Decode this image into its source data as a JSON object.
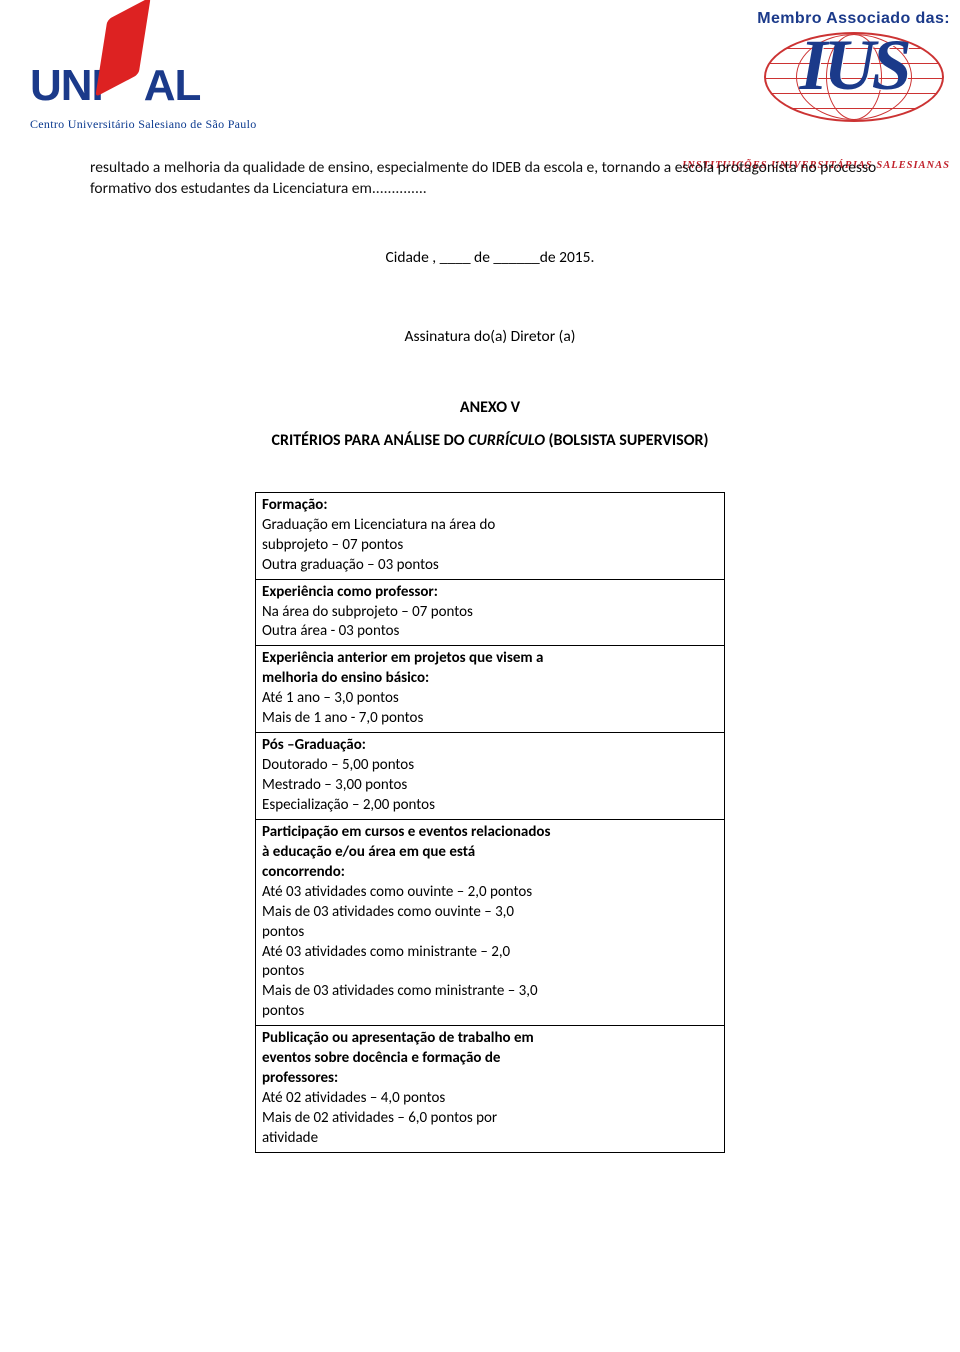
{
  "header": {
    "logo_left": {
      "uni": "UNI",
      "sal": "AL",
      "sub": "Centro Universitário Salesiano de São Paulo"
    },
    "logo_right": {
      "membro": "Membro Associado das:",
      "ius": "IUS",
      "sub": "INSTITUIÇÕES UNIVERSITÁRIAS SALESIANAS"
    }
  },
  "body": {
    "paragraph": "resultado a melhoria da qualidade de ensino, especialmente do IDEB da escola e, tornando a escola protagonista no processo formativo dos estudantes da Licenciatura em..............",
    "cidade_line": "Cidade , ____ de ______de 2015.",
    "assinatura": "Assinatura do(a) Diretor (a)",
    "anexo": "ANEXO V",
    "criterios_pre": "CRITÉRIOS PARA ANÁLISE DO ",
    "criterios_italic": "CURRÍCULO",
    "criterios_post": "  (BOLSISTA SUPERVISOR)"
  },
  "table": {
    "rows": [
      {
        "bold": "Formação:",
        "lines": [
          "Graduação em Licenciatura na área do",
          "subprojeto – 07 pontos",
          "Outra graduação – 03 pontos"
        ]
      },
      {
        "bold": "Experiência como professor:",
        "lines": [
          "Na área do subprojeto – 07 pontos",
          "Outra área - 03 pontos"
        ]
      },
      {
        "bold_wrapped": [
          "Experiência anterior em projetos que visem a",
          "melhoria do ensino básico:"
        ],
        "lines": [
          "Até 1 ano – 3,0 pontos",
          "Mais de 1 ano - 7,0 pontos"
        ]
      },
      {
        "bold": "Pós –Graduação:",
        "lines": [
          "Doutorado – 5,00 pontos",
          "Mestrado – 3,00 pontos",
          "Especialização – 2,00 pontos"
        ]
      },
      {
        "bold_wrapped": [
          "Participação em cursos e eventos relacionados",
          "à educação e/ou área em que está",
          "concorrendo:"
        ],
        "lines": [
          "Até 03 atividades como ouvinte – 2,0 pontos",
          "Mais de 03 atividades como ouvinte – 3,0",
          "pontos",
          "Até 03 atividades como ministrante – 2,0",
          "pontos",
          "Mais de 03 atividades como ministrante – 3,0",
          "pontos"
        ]
      },
      {
        "bold_wrapped": [
          "Publicação ou apresentação de trabalho em",
          "eventos sobre docência e formação de",
          "professores:"
        ],
        "lines": [
          "Até 02 atividades – 4,0 pontos",
          "Mais de 02 atividades – 6,0 pontos por",
          "atividade"
        ]
      }
    ]
  },
  "colors": {
    "brand_blue": "#1b3a8a",
    "brand_red": "#c0202a",
    "text": "#000000",
    "bg": "#ffffff"
  }
}
